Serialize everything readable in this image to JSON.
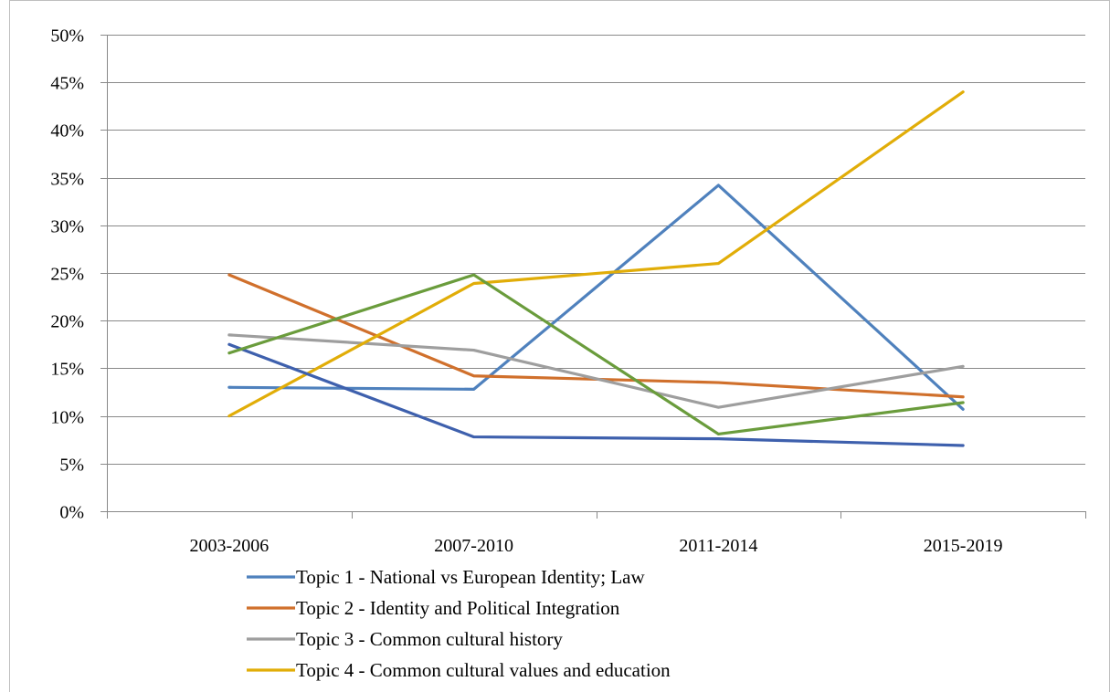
{
  "chart_data": {
    "type": "line",
    "title": "",
    "xlabel": "",
    "ylabel": "",
    "categories": [
      "2003-2006",
      "2007-2010",
      "2011-2014",
      "2015-2019"
    ],
    "ylim": [
      0,
      0.5
    ],
    "yticks": [
      0,
      0.05,
      0.1,
      0.15,
      0.2,
      0.25,
      0.3,
      0.35,
      0.4,
      0.45,
      0.5
    ],
    "ytick_labels": [
      "0%",
      "5%",
      "10%",
      "15%",
      "20%",
      "25%",
      "30%",
      "35%",
      "40%",
      "45%",
      "50%"
    ],
    "grid": true,
    "legend_position": "bottom",
    "series": [
      {
        "name": "Topic 1 - National vs European Identity; Law",
        "color": "#4f81bd",
        "values": [
          0.13,
          0.128,
          0.342,
          0.107
        ],
        "in_legend": true
      },
      {
        "name": "Topic 2 - Identity and Political Integration",
        "color": "#d0702c",
        "values": [
          0.248,
          0.142,
          0.135,
          0.12
        ],
        "in_legend": true
      },
      {
        "name": "Topic 3 - Common cultural history",
        "color": "#9e9e9e",
        "values": [
          0.185,
          0.169,
          0.109,
          0.152
        ],
        "in_legend": true
      },
      {
        "name": "Topic 4 - Common cultural values and education",
        "color": "#e1ad08",
        "values": [
          0.1,
          0.239,
          0.26,
          0.44
        ],
        "in_legend": true
      },
      {
        "color": "#3e60ad",
        "values": [
          0.175,
          0.078,
          0.076,
          0.069
        ],
        "in_legend": false
      },
      {
        "color": "#6a9c3c",
        "values": [
          0.166,
          0.248,
          0.081,
          0.114
        ],
        "in_legend": false
      }
    ]
  }
}
